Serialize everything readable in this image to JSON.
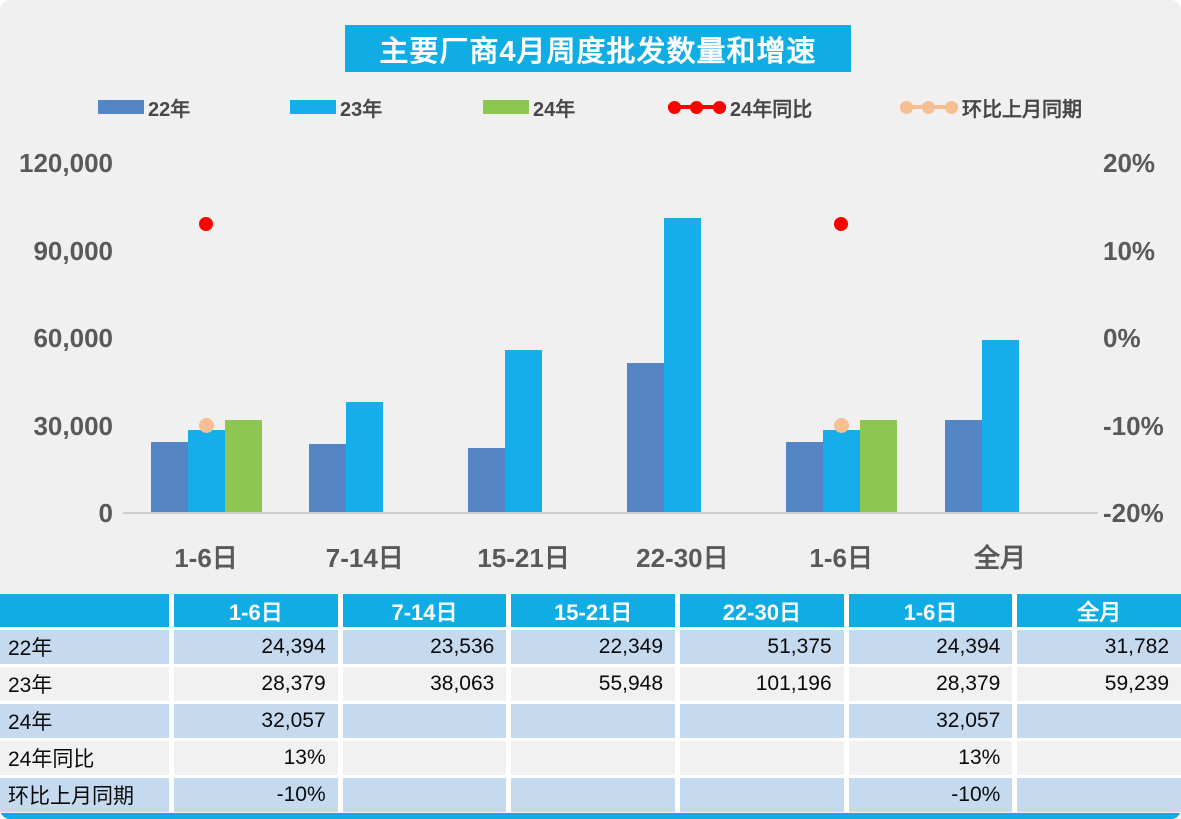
{
  "title": "主要厂商4月周度批发数量和增速",
  "colors": {
    "accent_cyan": "#10ace4",
    "bar_22": "#5585c4",
    "bar_23": "#16aeea",
    "bar_24": "#8ec652",
    "yoy_red": "#fe0000",
    "mom_peach": "#f6bf92",
    "row_blue": "#c5d9ef",
    "row_gray": "#f1f1f2",
    "axis_text": "#595959"
  },
  "legend": [
    {
      "label": "22年",
      "type": "bar",
      "color_key": "bar_22"
    },
    {
      "label": "23年",
      "type": "bar",
      "color_key": "bar_23"
    },
    {
      "label": "24年",
      "type": "bar",
      "color_key": "bar_24"
    },
    {
      "label": "24年同比",
      "type": "line",
      "color_key": "yoy_red"
    },
    {
      "label": "环比上月同期",
      "type": "line",
      "color_key": "mom_peach"
    }
  ],
  "chart_data": {
    "type": "bar",
    "title": "主要厂商4月周度批发数量和增速",
    "categories": [
      "1-6日",
      "7-14日",
      "15-21日",
      "22-30日",
      "1-6日",
      "全月"
    ],
    "series": [
      {
        "name": "22年",
        "kind": "bar",
        "axis": "left",
        "values": [
          24394,
          23536,
          22349,
          51375,
          24394,
          31782
        ]
      },
      {
        "name": "23年",
        "kind": "bar",
        "axis": "left",
        "values": [
          28379,
          38063,
          55948,
          101196,
          28379,
          59239
        ]
      },
      {
        "name": "24年",
        "kind": "bar",
        "axis": "left",
        "values": [
          32057,
          null,
          null,
          null,
          32057,
          null
        ]
      },
      {
        "name": "24年同比",
        "kind": "scatter",
        "axis": "right",
        "values": [
          0.13,
          null,
          null,
          null,
          0.13,
          null
        ]
      },
      {
        "name": "环比上月同期",
        "kind": "scatter",
        "axis": "right",
        "values": [
          -0.1,
          null,
          null,
          null,
          -0.1,
          null
        ]
      }
    ],
    "left_axis": {
      "ticks": [
        "120,000",
        "90,000",
        "60,000",
        "30,000",
        "0"
      ],
      "min": 0,
      "max": 120000
    },
    "right_axis": {
      "ticks": [
        "20%",
        "10%",
        "0%",
        "-10%",
        "-20%"
      ],
      "min": -0.2,
      "max": 0.2
    },
    "grid": false,
    "legend_position": "top"
  },
  "table": {
    "columns": [
      "",
      "1-6日",
      "7-14日",
      "15-21日",
      "22-30日",
      "1-6日",
      "全月"
    ],
    "rows": [
      {
        "label": "22年",
        "values": [
          "24,394",
          "23,536",
          "22,349",
          "51,375",
          "24,394",
          "31,782"
        ]
      },
      {
        "label": "23年",
        "values": [
          "28,379",
          "38,063",
          "55,948",
          "101,196",
          "28,379",
          "59,239"
        ]
      },
      {
        "label": "24年",
        "values": [
          "32,057",
          "",
          "",
          "",
          "32,057",
          ""
        ]
      },
      {
        "label": "24年同比",
        "values": [
          "13%",
          "",
          "",
          "",
          "13%",
          ""
        ]
      },
      {
        "label": "环比上月同期",
        "values": [
          "-10%",
          "",
          "",
          "",
          "-10%",
          ""
        ]
      }
    ]
  }
}
